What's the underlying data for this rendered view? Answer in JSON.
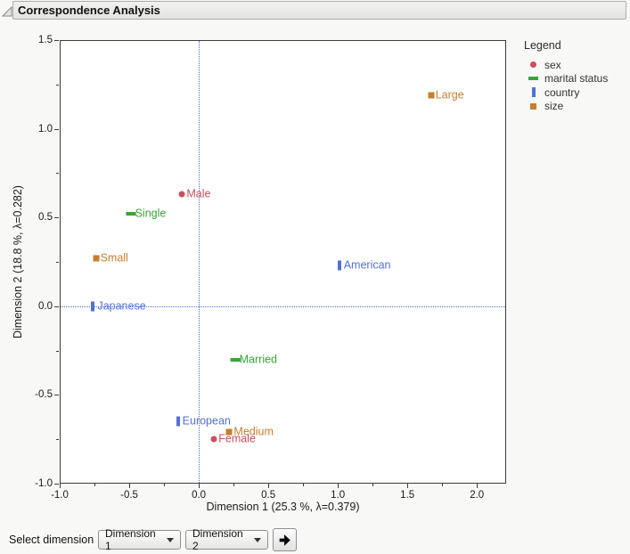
{
  "header": {
    "title": "Correspondence Analysis"
  },
  "chart_data": {
    "type": "scatter",
    "title": "Correspondence Analysis",
    "xlabel": "Dimension 1 (25.3 %, λ=0.379)",
    "ylabel": "Dimension 2 (18.8 %, λ=0.282)",
    "xlim": [
      -1.0,
      2.21
    ],
    "ylim": [
      -1.0,
      1.5
    ],
    "x_major_ticks": [
      -1.0,
      -0.5,
      0.0,
      0.5,
      1.0,
      1.5,
      2.0
    ],
    "x_minor_ticks": [
      -0.75,
      -0.25,
      0.25,
      0.75,
      1.25,
      1.75
    ],
    "y_major_ticks": [
      -1.0,
      -0.5,
      0.0,
      0.5,
      1.0,
      1.5
    ],
    "y_minor_ticks": [
      -0.75,
      -0.25,
      0.25,
      0.75,
      1.25
    ],
    "grid": false,
    "reference_lines": {
      "x": 0,
      "y": 0,
      "color": "#4A6FD4",
      "style": "dotted"
    },
    "legend_title": "Legend",
    "legend_position": "right",
    "series": [
      {
        "name": "sex",
        "color": "#C94F5F",
        "marker": "circle",
        "points": [
          {
            "label": "Male",
            "x": -0.12,
            "y": 0.63
          },
          {
            "label": "Female",
            "x": 0.11,
            "y": -0.75
          }
        ]
      },
      {
        "name": "marital status",
        "color": "#38A438",
        "marker": "hbar",
        "points": [
          {
            "label": "Single",
            "x": -0.49,
            "y": 0.52
          },
          {
            "label": "Married",
            "x": 0.26,
            "y": -0.3
          }
        ]
      },
      {
        "name": "country",
        "color": "#5271D4",
        "marker": "vbar",
        "points": [
          {
            "label": "American",
            "x": 1.01,
            "y": 0.23
          },
          {
            "label": "Japanese",
            "x": -0.76,
            "y": 0.0
          },
          {
            "label": "European",
            "x": -0.15,
            "y": -0.65
          }
        ]
      },
      {
        "name": "size",
        "color": "#C67E2F",
        "marker": "square",
        "points": [
          {
            "label": "Large",
            "x": 1.67,
            "y": 1.19
          },
          {
            "label": "Small",
            "x": -0.74,
            "y": 0.27
          },
          {
            "label": "Medium",
            "x": 0.22,
            "y": -0.71
          }
        ]
      }
    ]
  },
  "footer": {
    "select_label": "Select dimension",
    "dropdowns": [
      {
        "value": "Dimension 1"
      },
      {
        "value": "Dimension 2"
      }
    ]
  }
}
